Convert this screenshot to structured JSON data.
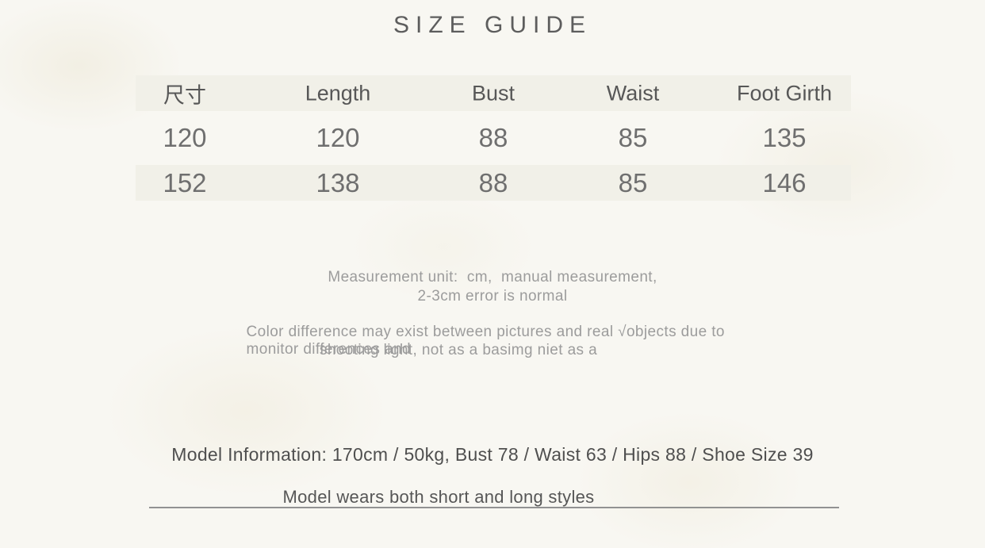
{
  "title": "SIZE GUIDE",
  "size_table": {
    "columns": [
      "尺寸",
      "Length",
      "Bust",
      "Waist",
      "Foot Girth"
    ],
    "rows": [
      [
        "120",
        "120",
        "88",
        "85",
        "135"
      ],
      [
        "152",
        "138",
        "88",
        "85",
        "146"
      ]
    ]
  },
  "notes": {
    "measurement": {
      "line1": "Measurement unit:  cm,  manual measurement,",
      "line2": "2-3cm error is normal"
    },
    "color_difference": {
      "line1": "Color difference may exist between pictures and real √objects due to monitor differences and",
      "line2": "shooting light, not as a basimg niet as a"
    }
  },
  "model": {
    "information": "Model Information: 170cm / 50kg, Bust 78 / Waist 63 / Hips 88 / Shoe Size 39",
    "wears": "Model wears both short and long styles"
  },
  "colors": {
    "background": "#f8f7f2",
    "table_band": "#f1f0e8",
    "heading_text": "#5d5d5d",
    "number_text": "#6f6f6f",
    "note_text": "#9c9c9c",
    "model_text": "#4f4f4f",
    "divider": "#929292"
  }
}
